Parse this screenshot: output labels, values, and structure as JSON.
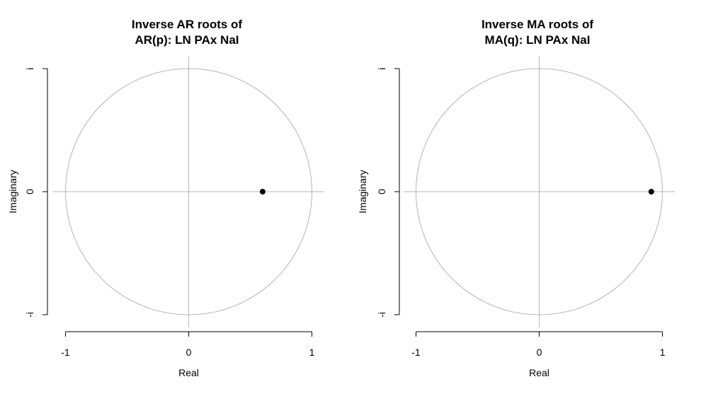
{
  "chart_data": [
    {
      "type": "scatter",
      "title_lines": [
        "Inverse AR roots of",
        "AR(p): LN PAx NaI"
      ],
      "xlabel": "Real",
      "ylabel": "Imaginary",
      "xlim": [
        -1,
        1
      ],
      "ylim": [
        -1,
        1
      ],
      "x_ticks": [
        -1,
        0,
        1
      ],
      "x_tick_labels": [
        "-1",
        "0",
        "1"
      ],
      "y_ticks": [
        1,
        0,
        -1
      ],
      "y_tick_labels": [
        "i",
        "0",
        "-i"
      ],
      "unit_circle": true,
      "points": [
        {
          "x": 0.6,
          "y": 0
        }
      ],
      "point_color": "#000000",
      "reference_color": "#b4b4b4"
    },
    {
      "type": "scatter",
      "title_lines": [
        "Inverse MA roots of",
        "MA(q): LN PAx NaI"
      ],
      "xlabel": "Real",
      "ylabel": "Imaginary",
      "xlim": [
        -1,
        1
      ],
      "ylim": [
        -1,
        1
      ],
      "x_ticks": [
        -1,
        0,
        1
      ],
      "x_tick_labels": [
        "-1",
        "0",
        "1"
      ],
      "y_ticks": [
        1,
        0,
        -1
      ],
      "y_tick_labels": [
        "i",
        "0",
        "-i"
      ],
      "unit_circle": true,
      "points": [
        {
          "x": 0.91,
          "y": 0
        }
      ],
      "point_color": "#000000",
      "reference_color": "#b4b4b4"
    }
  ]
}
